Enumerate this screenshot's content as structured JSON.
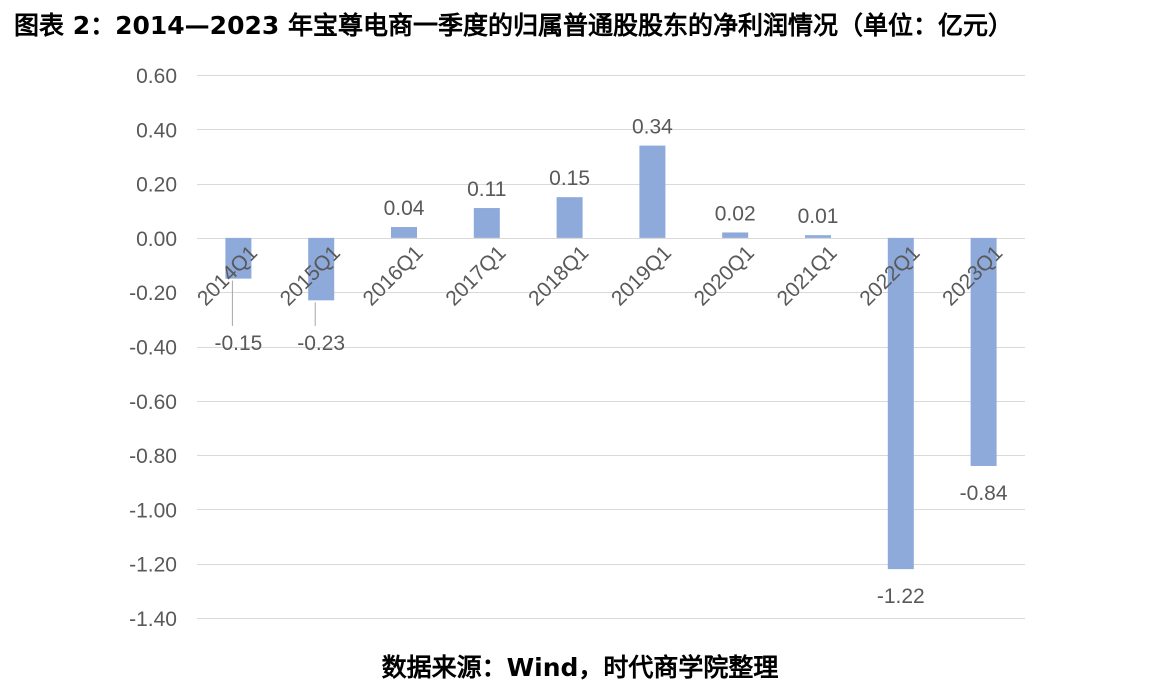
{
  "title": "图表 2：2014—2023 年宝尊电商一季度的归属普通股股东的净利润情况（单位：亿元）",
  "source": "数据来源：Wind，时代商学院整理",
  "colors": {
    "bar": "#8EAADB",
    "grid": "#D9D9D9",
    "text": "#595959",
    "leader": "#A6A6A6"
  },
  "chart_data": {
    "type": "bar",
    "title": "图表 2：2014—2023 年宝尊电商一季度的归属普通股股东的净利润情况（单位：亿元）",
    "xlabel": "",
    "ylabel": "",
    "categories": [
      "2014Q1",
      "2015Q1",
      "2016Q1",
      "2017Q1",
      "2018Q1",
      "2019Q1",
      "2020Q1",
      "2021Q1",
      "2022Q1",
      "2023Q1"
    ],
    "values": [
      -0.15,
      -0.23,
      0.04,
      0.11,
      0.15,
      0.34,
      0.02,
      0.01,
      -1.22,
      -0.84
    ],
    "data_labels": [
      "-0.15",
      "-0.23",
      "0.04",
      "0.11",
      "0.15",
      "0.34",
      "0.02",
      "0.01",
      "-1.22",
      "-0.84"
    ],
    "ylim": [
      -1.4,
      0.6
    ],
    "yticks": [
      0.6,
      0.4,
      0.2,
      0.0,
      -0.2,
      -0.4,
      -0.6,
      -0.8,
      -1.0,
      -1.2,
      -1.4
    ],
    "ytick_labels": [
      "0.60",
      "0.40",
      "0.20",
      "0.00",
      "-0.20",
      "-0.40",
      "-0.60",
      "-0.80",
      "-1.00",
      "-1.20",
      "-1.40"
    ],
    "grid": true,
    "legend": "none"
  }
}
